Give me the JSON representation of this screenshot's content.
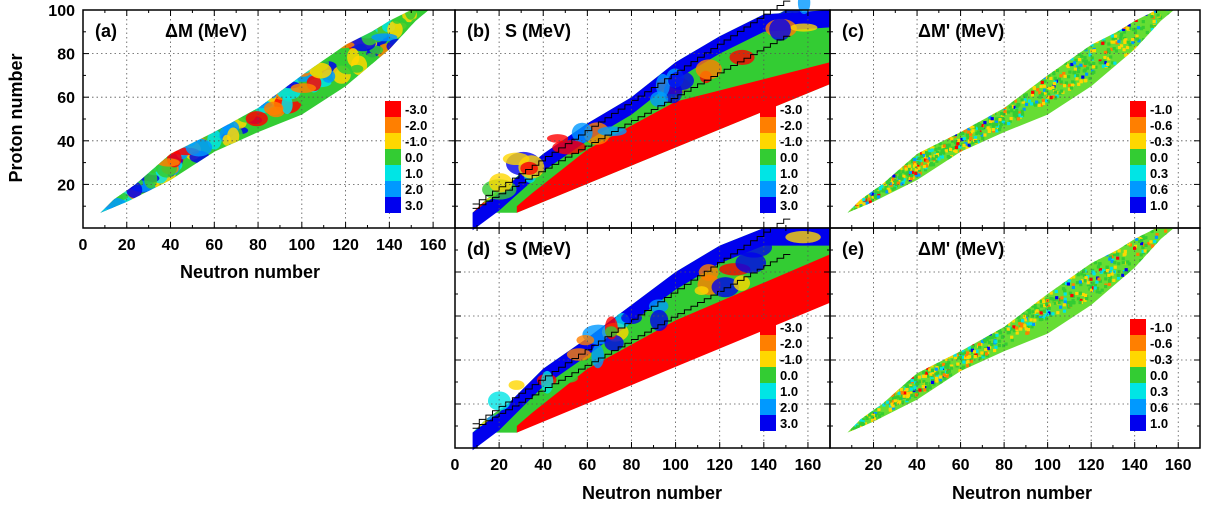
{
  "figure": {
    "y_axis_title": "Proton number",
    "x_axis_title": "Neutron number"
  },
  "colorbars": {
    "mass": {
      "labels": [
        "-3.0",
        "-2.0",
        "-1.0",
        "0.0",
        "1.0",
        "2.0",
        "3.0"
      ],
      "colors": [
        "#ff0000",
        "#ff7f00",
        "#ffd700",
        "#33cc33",
        "#00e5e5",
        "#0099ff",
        "#0000ee"
      ]
    },
    "residual": {
      "labels": [
        "-1.0",
        "-0.6",
        "-0.3",
        "0.0",
        "0.3",
        "0.6",
        "1.0"
      ],
      "colors": [
        "#ff0000",
        "#ff7f00",
        "#ffd700",
        "#33cc33",
        "#00e5e5",
        "#0099ff",
        "#0000ee"
      ]
    }
  },
  "chart_data": [
    {
      "type": "heatmap",
      "panel": "(a)",
      "title": "ΔM (MeV)",
      "xlabel": "Neutron number",
      "ylabel": "Proton number",
      "xlim": [
        0,
        170
      ],
      "ylim": [
        0,
        100
      ],
      "xticks": [
        "0",
        "20",
        "40",
        "60",
        "80",
        "100",
        "120",
        "140",
        "160"
      ],
      "yticks": [
        "20",
        "40",
        "60",
        "80",
        "100"
      ],
      "colorbar": "mass",
      "grid": true
    },
    {
      "type": "heatmap",
      "panel": "(b)",
      "title": "S (MeV)",
      "xlim": [
        0,
        170
      ],
      "ylim": [
        0,
        100
      ],
      "colorbar": "mass",
      "grid": true
    },
    {
      "type": "heatmap",
      "panel": "(c)",
      "title": "ΔM' (MeV)",
      "xlim": [
        0,
        170
      ],
      "ylim": [
        0,
        100
      ],
      "colorbar": "residual",
      "grid": true
    },
    {
      "type": "heatmap",
      "panel": "(d)",
      "title": "S (MeV)",
      "xlabel": "Neutron number",
      "xlim": [
        0,
        170
      ],
      "ylim": [
        0,
        100
      ],
      "xticks": [
        "0",
        "20",
        "40",
        "60",
        "80",
        "100",
        "120",
        "140",
        "160"
      ],
      "colorbar": "mass",
      "grid": true
    },
    {
      "type": "heatmap",
      "panel": "(e)",
      "title": "ΔM' (MeV)",
      "xlabel": "Neutron number",
      "xlim": [
        0,
        170
      ],
      "ylim": [
        0,
        100
      ],
      "xticks": [
        "20",
        "40",
        "60",
        "80",
        "100",
        "120",
        "140",
        "160"
      ],
      "colorbar": "residual",
      "grid": true
    }
  ]
}
